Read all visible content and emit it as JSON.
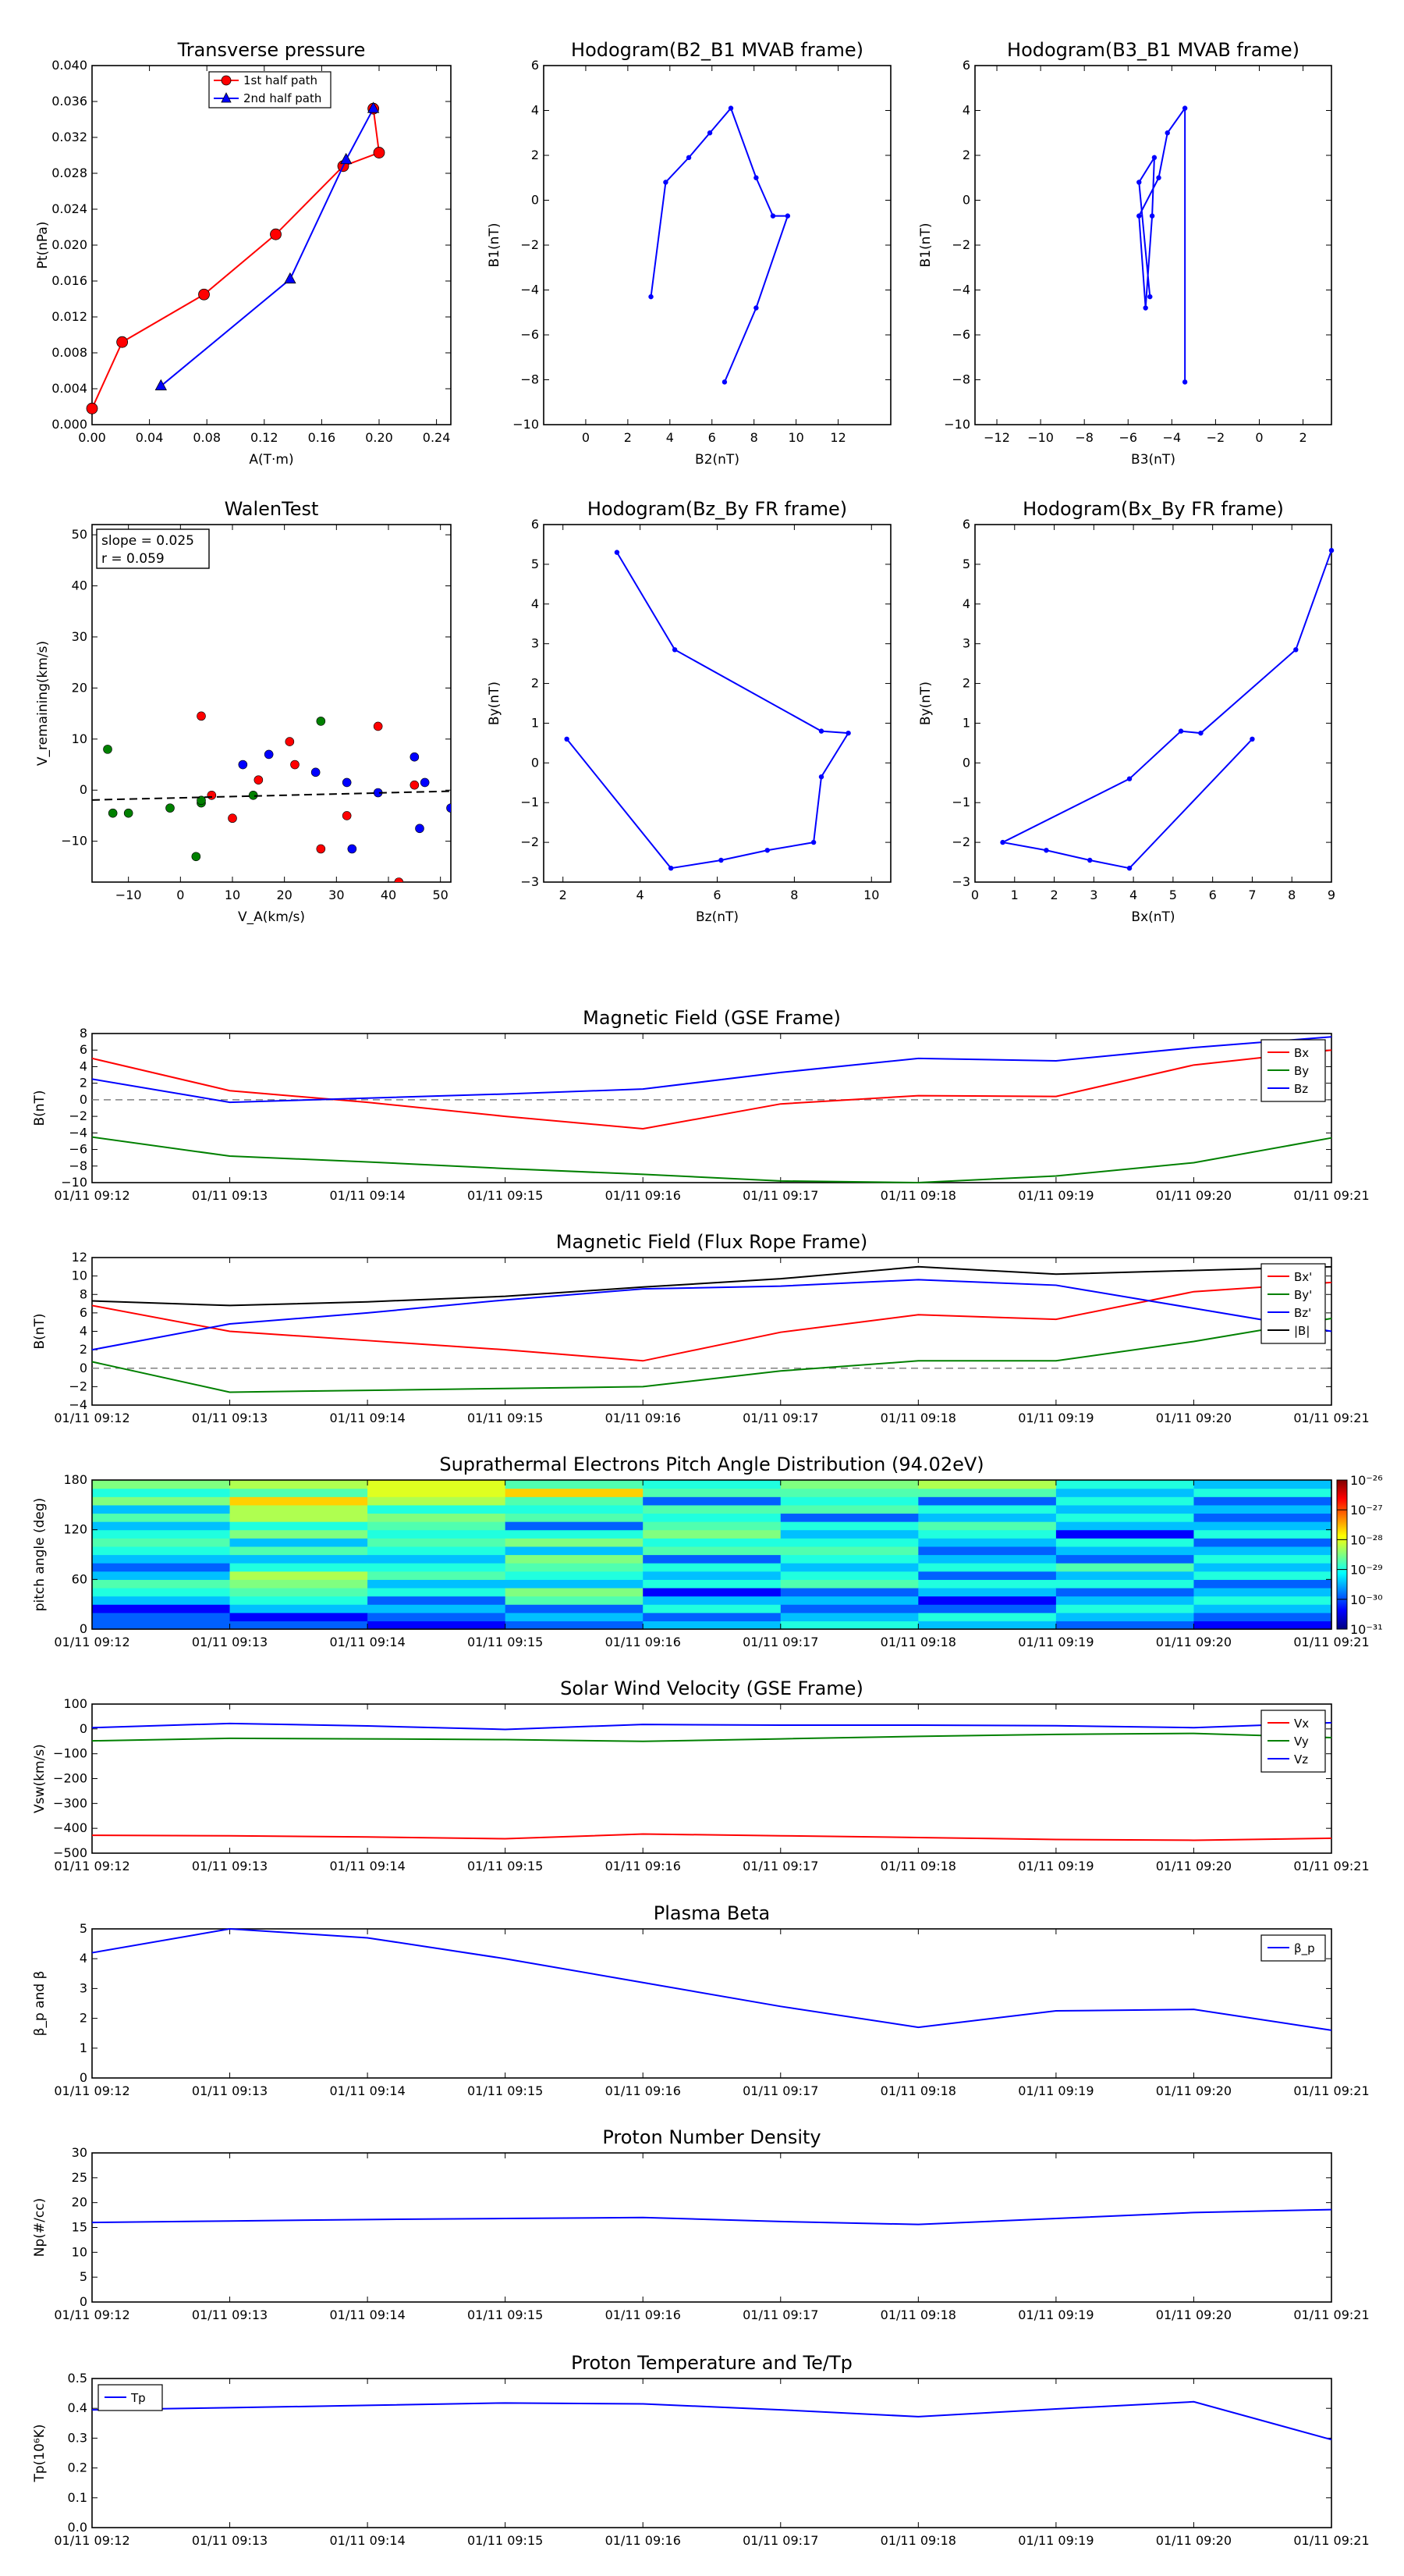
{
  "time_ticks": [
    "01/11 09:12",
    "01/11 09:13",
    "01/11 09:14",
    "01/11 09:15",
    "01/11 09:16",
    "01/11 09:17",
    "01/11 09:18",
    "01/11 09:19",
    "01/11 09:20",
    "01/11 09:21"
  ],
  "colors": {
    "red": "#ff0000",
    "green": "#008000",
    "blue": "#0000ff",
    "black": "#000000"
  },
  "chart_data": [
    {
      "id": "transverse_pressure",
      "type": "line",
      "title": "Transverse pressure",
      "xlabel": "A(T·m)",
      "ylabel": "Pt(nPa)",
      "xlim": [
        0,
        0.25
      ],
      "ylim": [
        0,
        0.04
      ],
      "xticks": [
        0,
        0.04,
        0.08,
        0.12,
        0.16,
        0.2,
        0.24
      ],
      "xtick_labels": [
        "0.00",
        "0.04",
        "0.08",
        "0.12",
        "0.16",
        "0.20",
        "0.24"
      ],
      "yticks": [
        0,
        0.004,
        0.008,
        0.012,
        0.016,
        0.02,
        0.024,
        0.028,
        0.032,
        0.036,
        0.04
      ],
      "ytick_labels": [
        "0.000",
        "0.004",
        "0.008",
        "0.012",
        "0.016",
        "0.020",
        "0.024",
        "0.028",
        "0.032",
        "0.036",
        "0.040"
      ],
      "legend": "top-center",
      "series": [
        {
          "name": "1st half path",
          "color": "#ff0000",
          "marker": "circle",
          "x": [
            0.0,
            0.021,
            0.078,
            0.128,
            0.175,
            0.2,
            0.196
          ],
          "y": [
            0.0018,
            0.0092,
            0.0145,
            0.0212,
            0.0288,
            0.0303,
            0.0352
          ]
        },
        {
          "name": "2nd half path",
          "color": "#0000ff",
          "marker": "triangle",
          "x": [
            0.048,
            0.138,
            0.177,
            0.196
          ],
          "y": [
            0.0043,
            0.0162,
            0.0295,
            0.0352
          ]
        }
      ]
    },
    {
      "id": "hodo_b2b1",
      "type": "line",
      "title": "Hodogram(B2_B1 MVAB frame)",
      "xlabel": "B2(nT)",
      "ylabel": "B1(nT)",
      "xlim": [
        -2,
        14.5
      ],
      "ylim": [
        -10,
        6
      ],
      "xticks": [
        0,
        2,
        4,
        6,
        8,
        10,
        12
      ],
      "xtick_labels": [
        "0",
        "2",
        "4",
        "6",
        "8",
        "10",
        "12"
      ],
      "yticks": [
        -10,
        -8,
        -6,
        -4,
        -2,
        0,
        2,
        4,
        6
      ],
      "ytick_labels": [
        "−10",
        "−8",
        "−6",
        "−4",
        "−2",
        "0",
        "2",
        "4",
        "6"
      ],
      "series": [
        {
          "name": "B1 vs B2",
          "color": "#0000ff",
          "x": [
            3.1,
            3.8,
            4.9,
            5.9,
            6.9,
            8.1,
            8.9,
            9.6,
            8.1,
            6.6
          ],
          "y": [
            -4.3,
            0.8,
            1.9,
            3.0,
            4.1,
            1.0,
            -0.7,
            -0.7,
            -4.8,
            -8.1
          ]
        }
      ]
    },
    {
      "id": "hodo_b3b1",
      "type": "line",
      "title": "Hodogram(B3_B1 MVAB frame)",
      "xlabel": "B3(nT)",
      "ylabel": "B1(nT)",
      "xlim": [
        -13,
        3.3
      ],
      "ylim": [
        -10,
        6
      ],
      "xticks": [
        -12,
        -10,
        -8,
        -6,
        -4,
        -2,
        0,
        2
      ],
      "xtick_labels": [
        "−12",
        "−10",
        "−8",
        "−6",
        "−4",
        "−2",
        "0",
        "2"
      ],
      "yticks": [
        -10,
        -8,
        -6,
        -4,
        -2,
        0,
        2,
        4,
        6
      ],
      "ytick_labels": [
        "−10",
        "−8",
        "−6",
        "−4",
        "−2",
        "0",
        "2",
        "4",
        "6"
      ],
      "series": [
        {
          "name": "B1 vs B3",
          "color": "#0000ff",
          "x": [
            -5.0,
            -5.5,
            -4.8,
            -4.9,
            -5.2,
            -5.5,
            -4.6,
            -4.2,
            -3.4,
            -3.4
          ],
          "y": [
            -4.3,
            0.8,
            1.9,
            -0.7,
            -4.8,
            -0.7,
            1.0,
            3.0,
            4.1,
            -8.1
          ]
        }
      ]
    },
    {
      "id": "walen",
      "type": "scatter",
      "title": "WalenTest",
      "xlabel": "V_A(km/s)",
      "ylabel": "V_remaining(km/s)",
      "annotation": [
        "slope = 0.025",
        "r = 0.059"
      ],
      "xlim": [
        -17,
        52
      ],
      "ylim": [
        -18,
        52
      ],
      "xticks": [
        -10,
        0,
        10,
        20,
        30,
        40,
        50
      ],
      "xtick_labels": [
        "−10",
        "0",
        "10",
        "20",
        "30",
        "40",
        "50"
      ],
      "yticks": [
        -10,
        0,
        10,
        20,
        30,
        40,
        50
      ],
      "ytick_labels": [
        "−10",
        "0",
        "10",
        "20",
        "30",
        "40",
        "50"
      ],
      "fit_line": {
        "slope": 0.025,
        "intercept": -1.5
      },
      "series": [
        {
          "name": "red",
          "color": "#ff0000",
          "x": [
            4,
            6,
            10,
            15,
            21,
            22,
            27,
            32,
            38,
            42,
            45
          ],
          "y": [
            14.5,
            -1,
            -5.5,
            2,
            9.5,
            5,
            -11.5,
            -5,
            12.5,
            -18,
            1
          ]
        },
        {
          "name": "green",
          "color": "#008000",
          "x": [
            -14,
            -13,
            -10,
            -2,
            3,
            4,
            4,
            14,
            27
          ],
          "y": [
            8,
            -4.5,
            -4.5,
            -3.5,
            -13,
            -2.5,
            -2,
            -1,
            13.5
          ]
        },
        {
          "name": "blue",
          "color": "#0000ff",
          "x": [
            12,
            17,
            26,
            32,
            33,
            38,
            45,
            46,
            47,
            52
          ],
          "y": [
            5,
            7,
            3.5,
            1.5,
            -11.5,
            -0.5,
            6.5,
            -7.5,
            1.5,
            -3.5
          ]
        }
      ]
    },
    {
      "id": "hodo_bzby",
      "type": "line",
      "title": "Hodogram(Bz_By FR frame)",
      "xlabel": "Bz(nT)",
      "ylabel": "By(nT)",
      "xlim": [
        1.5,
        10.5
      ],
      "ylim": [
        -3,
        6
      ],
      "xticks": [
        2,
        4,
        6,
        8,
        10
      ],
      "xtick_labels": [
        "2",
        "4",
        "6",
        "8",
        "10"
      ],
      "yticks": [
        -3,
        -2,
        -1,
        0,
        1,
        2,
        3,
        4,
        5,
        6
      ],
      "ytick_labels": [
        "−3",
        "−2",
        "−1",
        "0",
        "1",
        "2",
        "3",
        "4",
        "5",
        "6"
      ],
      "series": [
        {
          "name": "By vs Bz",
          "color": "#0000ff",
          "x": [
            3.4,
            4.9,
            8.7,
            9.4,
            8.7,
            8.5,
            7.3,
            6.1,
            4.8,
            2.1
          ],
          "y": [
            5.3,
            2.85,
            0.8,
            0.75,
            -0.35,
            -2.0,
            -2.2,
            -2.45,
            -2.65,
            0.6
          ]
        }
      ]
    },
    {
      "id": "hodo_bxby",
      "type": "line",
      "title": "Hodogram(Bx_By FR frame)",
      "xlabel": "Bx(nT)",
      "ylabel": "By(nT)",
      "xlim": [
        0,
        9
      ],
      "ylim": [
        -3,
        6
      ],
      "xticks": [
        0,
        1,
        2,
        3,
        4,
        5,
        6,
        7,
        8,
        9
      ],
      "xtick_labels": [
        "0",
        "1",
        "2",
        "3",
        "4",
        "5",
        "6",
        "7",
        "8",
        "9"
      ],
      "yticks": [
        -3,
        -2,
        -1,
        0,
        1,
        2,
        3,
        4,
        5,
        6
      ],
      "ytick_labels": [
        "−3",
        "−2",
        "−1",
        "0",
        "1",
        "2",
        "3",
        "4",
        "5",
        "6"
      ],
      "series": [
        {
          "name": "By vs Bx",
          "color": "#0000ff",
          "x": [
            9.0,
            8.1,
            5.7,
            5.2,
            3.9,
            0.7,
            1.8,
            2.9,
            3.9,
            7.0
          ],
          "y": [
            5.35,
            2.85,
            0.75,
            0.8,
            -0.4,
            -2.0,
            -2.2,
            -2.45,
            -2.65,
            0.6
          ]
        }
      ]
    },
    {
      "id": "mag_gse",
      "type": "line",
      "title": "Magnetic Field (GSE Frame)",
      "ylabel": "B(nT)",
      "ylim": [
        -10,
        8
      ],
      "yticks": [
        -10,
        -8,
        -6,
        -4,
        -2,
        0,
        2,
        4,
        6,
        8
      ],
      "ytick_labels": [
        "−10",
        "−8",
        "−6",
        "−4",
        "−2",
        "0",
        "2",
        "4",
        "6",
        "8"
      ],
      "legend": "top-right",
      "zero_line": true,
      "x": [
        0,
        1,
        2,
        3,
        4,
        5,
        6,
        7,
        8,
        9
      ],
      "series": [
        {
          "name": "Bx",
          "color": "#ff0000",
          "values": [
            5.0,
            1.1,
            -0.3,
            -2.0,
            -3.5,
            -0.5,
            0.5,
            0.4,
            4.2,
            6.0
          ]
        },
        {
          "name": "By",
          "color": "#008000",
          "values": [
            -4.5,
            -6.8,
            -7.5,
            -8.3,
            -9.0,
            -9.8,
            -10.0,
            -9.2,
            -7.6,
            -4.6
          ]
        },
        {
          "name": "Bz",
          "color": "#0000ff",
          "values": [
            2.5,
            -0.3,
            0.2,
            0.7,
            1.3,
            3.3,
            5.0,
            4.7,
            6.3,
            7.6
          ]
        }
      ]
    },
    {
      "id": "mag_fr",
      "type": "line",
      "title": "Magnetic Field (Flux Rope Frame)",
      "ylabel": "B(nT)",
      "ylim": [
        -4,
        12
      ],
      "yticks": [
        -4,
        -2,
        0,
        2,
        4,
        6,
        8,
        10,
        12
      ],
      "ytick_labels": [
        "−4",
        "−2",
        "0",
        "2",
        "4",
        "6",
        "8",
        "10",
        "12"
      ],
      "legend": "top-right",
      "zero_line": true,
      "x": [
        0,
        1,
        2,
        3,
        4,
        5,
        6,
        7,
        8,
        9
      ],
      "series": [
        {
          "name": "Bx'",
          "color": "#ff0000",
          "values": [
            6.8,
            4.0,
            3.0,
            2.0,
            0.8,
            3.9,
            5.8,
            5.3,
            8.3,
            9.3
          ]
        },
        {
          "name": "By'",
          "color": "#008000",
          "values": [
            0.7,
            -2.6,
            -2.4,
            -2.2,
            -2.0,
            -0.3,
            0.8,
            0.8,
            2.9,
            5.4
          ]
        },
        {
          "name": "Bz'",
          "color": "#0000ff",
          "values": [
            2.0,
            4.8,
            6.0,
            7.4,
            8.6,
            8.9,
            9.6,
            9.0,
            6.5,
            4.0
          ]
        },
        {
          "name": "|B|",
          "color": "#000000",
          "values": [
            7.3,
            6.8,
            7.2,
            7.8,
            8.8,
            9.7,
            11.0,
            10.2,
            10.6,
            11.0
          ]
        }
      ]
    },
    {
      "id": "pad",
      "type": "heatmap",
      "title": "Suprathermal Electrons Pitch Angle Distribution (94.02eV)",
      "ylabel": "pitch angle (deg)",
      "ylim": [
        0,
        180
      ],
      "yticks": [
        0,
        60,
        120,
        180
      ],
      "ytick_labels": [
        "0",
        "60",
        "120",
        "180"
      ],
      "colorbar_labels": [
        "10⁻²⁶",
        "10⁻²⁷",
        "10⁻²⁸",
        "10⁻²⁹",
        "10⁻³⁰",
        "10⁻³¹"
      ],
      "n_time_bins": 9,
      "n_angle_bins": 18,
      "grid": [
        [
          2,
          2,
          1,
          3,
          4,
          5,
          3,
          2,
          3,
          4,
          5,
          4,
          3,
          5,
          3,
          6,
          4,
          6
        ],
        [
          2,
          1,
          3,
          4,
          5,
          6,
          7,
          4,
          3,
          5,
          3,
          6,
          4,
          7,
          7,
          9,
          5,
          7
        ],
        [
          1,
          2,
          3,
          2,
          4,
          3,
          5,
          4,
          3,
          4,
          5,
          4,
          5,
          6,
          4,
          7,
          8,
          8
        ],
        [
          2,
          3,
          2,
          5,
          6,
          3,
          4,
          5,
          6,
          3,
          6,
          4,
          2,
          5,
          4,
          5,
          9,
          5
        ],
        [
          3,
          2,
          4,
          3,
          1,
          4,
          3,
          4,
          2,
          5,
          4,
          6,
          5,
          4,
          5,
          2,
          5,
          4
        ],
        [
          4,
          3,
          2,
          3,
          2,
          5,
          4,
          3,
          4,
          5,
          4,
          3,
          4,
          2,
          5,
          4,
          5,
          6
        ],
        [
          3,
          4,
          2,
          1,
          3,
          4,
          2,
          4,
          3,
          2,
          3,
          4,
          5,
          3,
          4,
          2,
          5,
          7
        ],
        [
          2,
          3,
          4,
          3,
          2,
          4,
          3,
          5,
          2,
          3,
          4,
          1,
          3,
          4,
          3,
          4,
          3,
          4
        ],
        [
          1,
          2,
          3,
          4,
          3,
          2,
          4,
          3,
          4,
          3,
          2,
          4,
          3,
          2,
          3,
          2,
          4,
          3
        ]
      ]
    },
    {
      "id": "sw_velocity",
      "type": "line",
      "title": "Solar Wind Velocity (GSE Frame)",
      "ylabel": "Vsw(km/s)",
      "ylim": [
        -500,
        100
      ],
      "yticks": [
        -500,
        -400,
        -300,
        -200,
        -100,
        0,
        100
      ],
      "ytick_labels": [
        "−500",
        "−400",
        "−300",
        "−200",
        "−100",
        "0",
        "100"
      ],
      "legend": "top-right",
      "x": [
        0,
        1,
        2,
        3,
        4,
        5,
        6,
        7,
        8,
        9
      ],
      "series": [
        {
          "name": "Vx",
          "color": "#ff0000",
          "values": [
            -428,
            -430,
            -435,
            -442,
            -423,
            -430,
            -437,
            -445,
            -448,
            -440
          ]
        },
        {
          "name": "Vy",
          "color": "#008000",
          "values": [
            -48,
            -38,
            -40,
            -43,
            -50,
            -40,
            -30,
            -22,
            -18,
            -35
          ]
        },
        {
          "name": "Vz",
          "color": "#0000ff",
          "values": [
            5,
            22,
            12,
            -2,
            18,
            15,
            15,
            13,
            5,
            25
          ]
        }
      ]
    },
    {
      "id": "plasma_beta",
      "type": "line",
      "title": "Plasma Beta",
      "ylabel": "β_p and β",
      "ylim": [
        0,
        5
      ],
      "yticks": [
        0,
        1,
        2,
        3,
        4,
        5
      ],
      "ytick_labels": [
        "0",
        "1",
        "2",
        "3",
        "4",
        "5"
      ],
      "legend": "top-right",
      "x": [
        0,
        1,
        2,
        3,
        4,
        5,
        6,
        7,
        8,
        9
      ],
      "series": [
        {
          "name": "β_p",
          "color": "#0000ff",
          "values": [
            4.2,
            5.0,
            4.7,
            4.0,
            3.2,
            2.4,
            1.7,
            2.25,
            2.3,
            1.6
          ]
        }
      ]
    },
    {
      "id": "proton_density",
      "type": "line",
      "title": "Proton Number Density",
      "ylabel": "Np(#/cc)",
      "ylim": [
        0,
        30
      ],
      "yticks": [
        0,
        5,
        10,
        15,
        20,
        25,
        30
      ],
      "ytick_labels": [
        "0",
        "5",
        "10",
        "15",
        "20",
        "25",
        "30"
      ],
      "x": [
        0,
        1,
        2,
        3,
        4,
        5,
        6,
        7,
        8,
        9
      ],
      "series": [
        {
          "name": "Np",
          "color": "#0000ff",
          "values": [
            16,
            16.3,
            16.6,
            16.8,
            17.0,
            16.2,
            15.6,
            16.8,
            18.0,
            18.6
          ]
        }
      ]
    },
    {
      "id": "proton_temp",
      "type": "line",
      "title": "Proton Temperature and Te/Tp",
      "ylabel": "Tp(10⁶K)",
      "ylim": [
        0,
        0.5
      ],
      "yticks": [
        0,
        0.1,
        0.2,
        0.3,
        0.4,
        0.5
      ],
      "ytick_labels": [
        "0.0",
        "0.1",
        "0.2",
        "0.3",
        "0.4",
        "0.5"
      ],
      "legend": "top-left",
      "x": [
        0,
        1,
        2,
        3,
        4,
        5,
        6,
        7,
        8,
        9
      ],
      "series": [
        {
          "name": "Tp",
          "color": "#0000ff",
          "values": [
            0.395,
            0.402,
            0.41,
            0.418,
            0.415,
            0.395,
            0.372,
            0.398,
            0.422,
            0.295
          ]
        }
      ]
    }
  ]
}
